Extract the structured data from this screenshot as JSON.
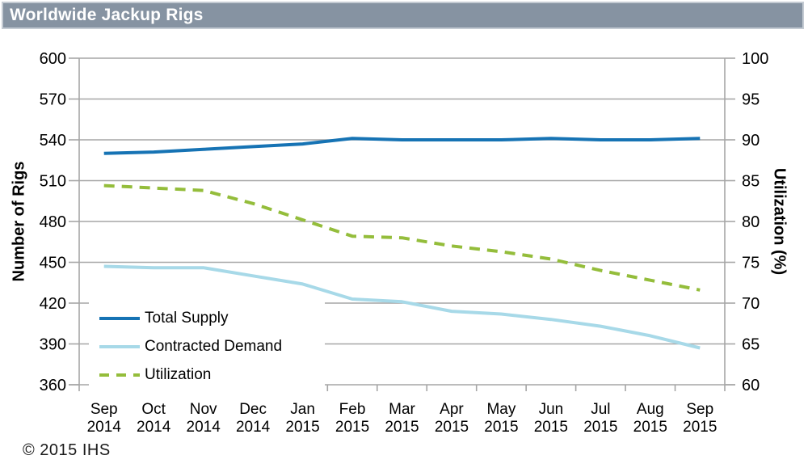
{
  "header": {
    "title": "Worldwide Jackup Rigs"
  },
  "footer": {
    "copyright": "© 2015 IHS"
  },
  "colors": {
    "total_supply": "#1673b4",
    "contracted_demand": "#a7d9e8",
    "utilization": "#94bd3b",
    "grid": "#a6a6a6",
    "axis_text": "#000000",
    "header_bg": "#8693a2",
    "header_border": "#c4cbd3",
    "title_text": "#ffffff"
  },
  "chart_data": {
    "type": "line",
    "title": "Worldwide Jackup Rigs",
    "categories": [
      {
        "month": "Sep",
        "year": "2014"
      },
      {
        "month": "Oct",
        "year": "2014"
      },
      {
        "month": "Nov",
        "year": "2014"
      },
      {
        "month": "Dec",
        "year": "2014"
      },
      {
        "month": "Jan",
        "year": "2015"
      },
      {
        "month": "Feb",
        "year": "2015"
      },
      {
        "month": "Mar",
        "year": "2015"
      },
      {
        "month": "Apr",
        "year": "2015"
      },
      {
        "month": "May",
        "year": "2015"
      },
      {
        "month": "Jun",
        "year": "2015"
      },
      {
        "month": "Jul",
        "year": "2015"
      },
      {
        "month": "Aug",
        "year": "2015"
      },
      {
        "month": "Sep",
        "year": "2015"
      }
    ],
    "series": [
      {
        "name": "Total Supply",
        "axis": "left",
        "style": "solid",
        "color_key": "total_supply",
        "values": [
          530,
          531,
          533,
          535,
          537,
          541,
          540,
          540,
          540,
          541,
          540,
          540,
          541
        ]
      },
      {
        "name": "Contracted Demand",
        "axis": "left",
        "style": "solid",
        "color_key": "contracted_demand",
        "values": [
          447,
          446,
          446,
          440,
          434,
          423,
          421,
          414,
          412,
          408,
          403,
          396,
          387
        ]
      },
      {
        "name": "Utilization",
        "axis": "right",
        "style": "dashed",
        "color_key": "utilization",
        "values": [
          84.4,
          84.1,
          83.8,
          82.2,
          80.2,
          78.2,
          78.0,
          77.0,
          76.3,
          75.4,
          74.0,
          72.8,
          71.6
        ]
      }
    ],
    "left_axis": {
      "label": "Number of Rigs",
      "min": 360,
      "max": 600,
      "step": 30,
      "ticks": [
        600,
        570,
        540,
        510,
        480,
        450,
        420,
        390,
        360
      ]
    },
    "right_axis": {
      "label": "Utilization (%)",
      "min": 60,
      "max": 100,
      "step": 5,
      "ticks": [
        100,
        95,
        90,
        85,
        80,
        75,
        70,
        65,
        60
      ]
    },
    "grid": "horizontal",
    "legend_position": "inside-bottom-left"
  }
}
